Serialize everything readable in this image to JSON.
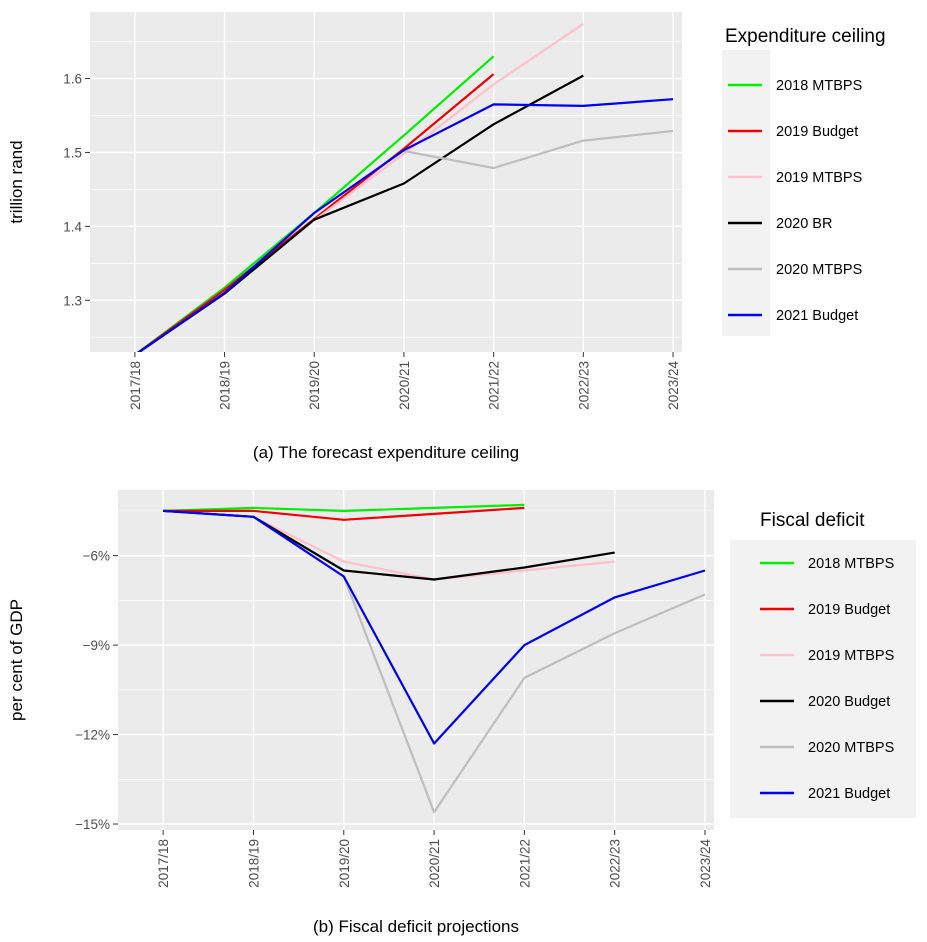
{
  "chart_data": [
    {
      "type": "line",
      "caption": "(a) The forecast expenditure ceiling",
      "xlabel": "",
      "ylabel": "trillion rand",
      "categories": [
        "2017/18",
        "2018/19",
        "2019/20",
        "2020/21",
        "2021/22",
        "2022/23",
        "2023/24"
      ],
      "ylim": [
        1.23,
        1.69
      ],
      "yticks": [
        1.3,
        1.4,
        1.5,
        1.6
      ],
      "ytick_labels": [
        "1.3",
        "1.4",
        "1.5",
        "1.6"
      ],
      "grid": true,
      "legend": {
        "title": "Expenditure ceiling",
        "placement": "right"
      },
      "series": [
        {
          "name": "2018 MTBPS",
          "color": "#00ee00",
          "values": [
            1.226,
            1.317,
            1.418,
            1.523,
            1.63,
            null,
            null
          ]
        },
        {
          "name": "2019 Budget",
          "color": "#ee0000",
          "values": [
            1.226,
            1.314,
            1.41,
            1.505,
            1.606,
            null,
            null
          ]
        },
        {
          "name": "2019 MTBPS",
          "color": "#ffc0cb",
          "values": [
            null,
            null,
            1.408,
            1.498,
            1.592,
            1.674,
            null
          ]
        },
        {
          "name": "2020 BR",
          "color": "#000000",
          "values": [
            1.226,
            1.309,
            1.409,
            1.458,
            1.538,
            1.604,
            null
          ]
        },
        {
          "name": "2020 MTBPS",
          "color": "#bebebe",
          "values": [
            null,
            null,
            null,
            1.502,
            1.479,
            1.516,
            1.529
          ]
        },
        {
          "name": "2021 Budget",
          "color": "#0000ee",
          "values": [
            1.226,
            1.31,
            1.418,
            1.503,
            1.565,
            1.563,
            1.572
          ]
        }
      ]
    },
    {
      "type": "line",
      "caption": "(b) Fiscal deficit projections",
      "xlabel": "",
      "ylabel": "per cent of GDP",
      "categories": [
        "2017/18",
        "2018/19",
        "2019/20",
        "2020/21",
        "2021/22",
        "2022/23",
        "2023/24"
      ],
      "ylim": [
        -15.2,
        -3.8
      ],
      "yticks": [
        -15,
        -12,
        -9,
        -6
      ],
      "ytick_labels": [
        "−15%",
        "−12%",
        "−9%",
        "−6%"
      ],
      "grid": true,
      "legend": {
        "title": "Fiscal deficit",
        "placement": "right"
      },
      "series": [
        {
          "name": "2018 MTBPS",
          "color": "#00ee00",
          "values": [
            -4.5,
            -4.4,
            -4.5,
            -4.4,
            -4.3,
            null,
            null
          ]
        },
        {
          "name": "2019 Budget",
          "color": "#ee0000",
          "values": [
            -4.5,
            -4.5,
            -4.8,
            -4.6,
            -4.4,
            null,
            null
          ]
        },
        {
          "name": "2019 MTBPS",
          "color": "#ffc0cb",
          "values": [
            null,
            -4.7,
            -6.2,
            -6.8,
            -6.5,
            -6.2,
            null
          ]
        },
        {
          "name": "2020 Budget",
          "color": "#000000",
          "values": [
            -4.5,
            -4.7,
            -6.5,
            -6.8,
            -6.4,
            -5.9,
            null
          ]
        },
        {
          "name": "2020 MTBPS",
          "color": "#bebebe",
          "values": [
            null,
            null,
            -6.7,
            -14.6,
            -10.1,
            -8.6,
            -7.3
          ]
        },
        {
          "name": "2021 Budget",
          "color": "#0000ee",
          "values": [
            -4.5,
            -4.7,
            -6.7,
            -12.3,
            -9.0,
            -7.4,
            -6.5
          ]
        }
      ]
    }
  ]
}
